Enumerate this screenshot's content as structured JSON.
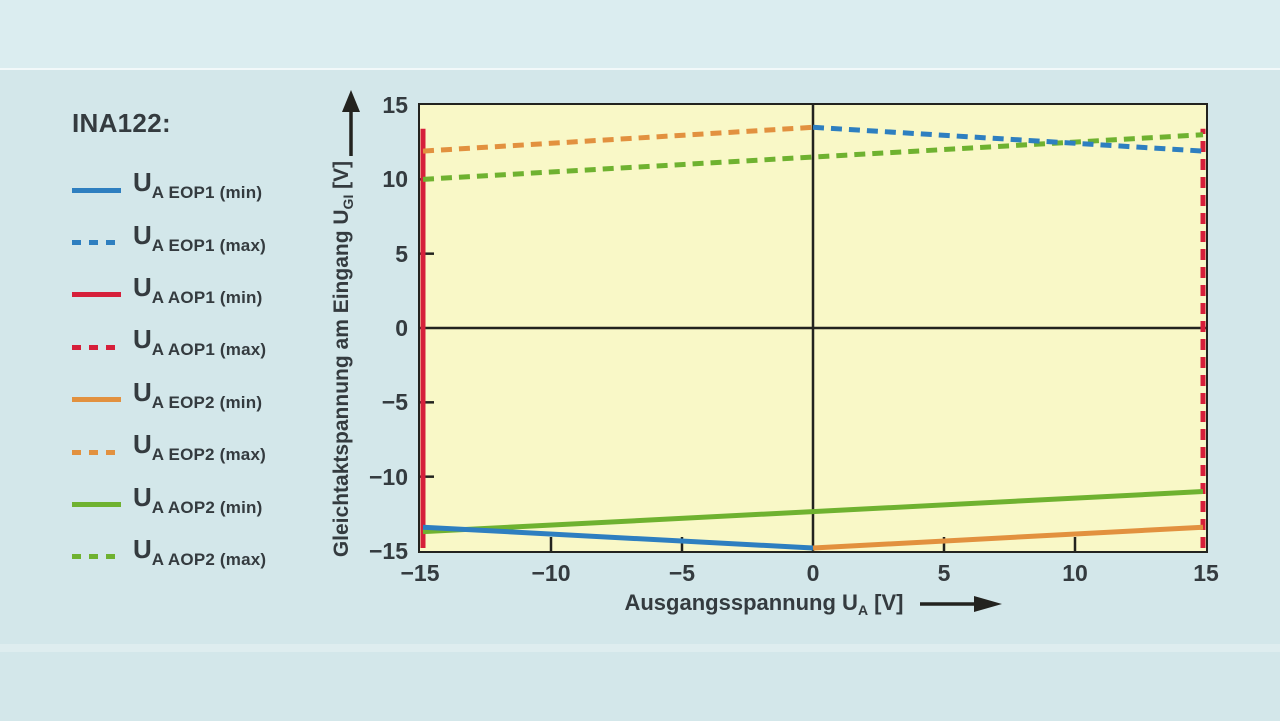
{
  "colors": {
    "blue": "#2e7fc0",
    "red": "#d61f3a",
    "orange": "#e2913f",
    "green": "#6fb230",
    "plot_bg": "#f9f8c7",
    "page_bg": "#d3e7ea",
    "top_strip_bg": "#dbedf0",
    "axis": "#23231f",
    "text": "#343b3f"
  },
  "legend": {
    "title": "INA122:",
    "items": [
      {
        "main": "U",
        "sub": "A EOP1 (min)",
        "color": "blue",
        "dash": false
      },
      {
        "main": "U",
        "sub": "A EOP1 (max)",
        "color": "blue",
        "dash": true
      },
      {
        "main": "U",
        "sub": "A AOP1 (min)",
        "color": "red",
        "dash": false
      },
      {
        "main": "U",
        "sub": "A AOP1 (max)",
        "color": "red",
        "dash": true
      },
      {
        "main": "U",
        "sub": "A EOP2 (min)",
        "color": "orange",
        "dash": false
      },
      {
        "main": "U",
        "sub": "A EOP2 (max)",
        "color": "orange",
        "dash": true
      },
      {
        "main": "U",
        "sub": "A AOP2 (min)",
        "color": "green",
        "dash": false
      },
      {
        "main": "U",
        "sub": "A AOP2 (max)",
        "color": "green",
        "dash": true
      }
    ]
  },
  "axes": {
    "x": {
      "label_pre": "Ausgangsspannung U",
      "label_sub": "A",
      "label_post": " [V]",
      "min": -15,
      "max": 15,
      "ticks": [
        -15,
        -10,
        -5,
        0,
        5,
        10,
        15
      ]
    },
    "y": {
      "label_pre": "Gleichtaktspannung am Eingang U",
      "label_sub": "GI",
      "label_post": " [V]",
      "min": -15,
      "max": 15,
      "ticks": [
        -15,
        -10,
        -5,
        0,
        5,
        10,
        15
      ]
    }
  },
  "chart_data": {
    "type": "line",
    "title": "INA122:",
    "xlabel": "Ausgangsspannung U_A [V]",
    "ylabel": "Gleichtaktspannung am Eingang U_GI [V]",
    "xlim": [
      -15,
      15
    ],
    "ylim": [
      -15,
      15
    ],
    "grid": false,
    "legend_position": "left",
    "series": [
      {
        "name": "U_A AOP1 (min)",
        "color": "red",
        "dash": false,
        "points": [
          [
            -15,
            -15
          ],
          [
            -15,
            13.4
          ]
        ]
      },
      {
        "name": "U_A AOP1 (max)",
        "color": "red",
        "dash": true,
        "points": [
          [
            15,
            -15
          ],
          [
            15,
            13.4
          ]
        ]
      },
      {
        "name": "U_A EOP2 (max)",
        "color": "orange",
        "dash": true,
        "points": [
          [
            -15,
            11.9
          ],
          [
            0,
            13.5
          ]
        ]
      },
      {
        "name": "U_A AOP2 (max)",
        "color": "green",
        "dash": true,
        "points": [
          [
            -15,
            10
          ],
          [
            15,
            13
          ]
        ]
      },
      {
        "name": "U_A EOP1 (max)",
        "color": "blue",
        "dash": true,
        "points": [
          [
            0,
            13.5
          ],
          [
            15,
            11.9
          ]
        ]
      },
      {
        "name": "U_A AOP2 (min)",
        "color": "green",
        "dash": false,
        "points": [
          [
            -15,
            -13.7
          ],
          [
            15,
            -11
          ]
        ]
      },
      {
        "name": "U_A EOP1 (min)",
        "color": "blue",
        "dash": false,
        "points": [
          [
            -15,
            -13.4
          ],
          [
            0,
            -15
          ]
        ]
      },
      {
        "name": "U_A EOP2 (min)",
        "color": "orange",
        "dash": false,
        "points": [
          [
            0,
            -15
          ],
          [
            15,
            -13.4
          ]
        ]
      }
    ]
  }
}
